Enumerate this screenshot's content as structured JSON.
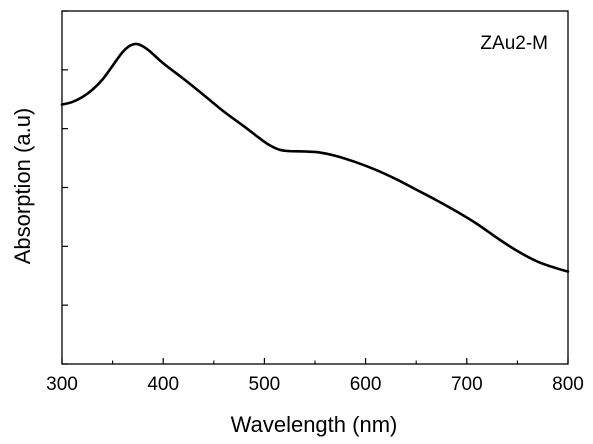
{
  "chart_data": {
    "type": "line",
    "xlabel": "Wavelength (nm)",
    "ylabel": "Absorption (a.u)",
    "annotation": "ZAu2-M",
    "xlim": [
      300,
      800
    ],
    "ylim": [
      0,
      1
    ],
    "x_ticks": [
      300,
      400,
      500,
      600,
      700,
      800
    ],
    "y_ticks_unlabeled": [
      0.0,
      0.1667,
      0.3333,
      0.5,
      0.6667,
      0.8333,
      1.0
    ],
    "grid": false,
    "series": [
      {
        "color": "#000000",
        "points": [
          [
            300,
            0.735
          ],
          [
            310,
            0.742
          ],
          [
            320,
            0.756
          ],
          [
            330,
            0.777
          ],
          [
            340,
            0.806
          ],
          [
            350,
            0.845
          ],
          [
            360,
            0.884
          ],
          [
            368,
            0.903
          ],
          [
            375,
            0.906
          ],
          [
            385,
            0.89
          ],
          [
            400,
            0.852
          ],
          [
            420,
            0.808
          ],
          [
            440,
            0.762
          ],
          [
            460,
            0.715
          ],
          [
            480,
            0.673
          ],
          [
            495,
            0.64
          ],
          [
            505,
            0.62
          ],
          [
            515,
            0.607
          ],
          [
            525,
            0.603
          ],
          [
            540,
            0.602
          ],
          [
            555,
            0.599
          ],
          [
            570,
            0.59
          ],
          [
            590,
            0.572
          ],
          [
            610,
            0.55
          ],
          [
            630,
            0.524
          ],
          [
            650,
            0.494
          ],
          [
            670,
            0.464
          ],
          [
            690,
            0.432
          ],
          [
            710,
            0.397
          ],
          [
            730,
            0.357
          ],
          [
            750,
            0.32
          ],
          [
            770,
            0.29
          ],
          [
            790,
            0.27
          ],
          [
            800,
            0.262
          ]
        ]
      }
    ]
  }
}
